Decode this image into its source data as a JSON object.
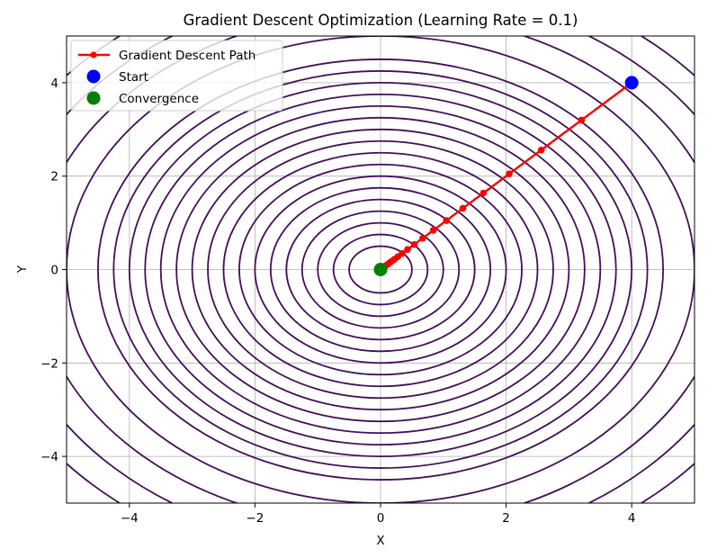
{
  "chart_data": {
    "type": "line",
    "title": "Gradient Descent Optimization (Learning Rate = 0.1)",
    "xlabel": "X",
    "ylabel": "Y",
    "xlim": [
      -5,
      5
    ],
    "ylim": [
      -5,
      5
    ],
    "x_ticks": [
      -4,
      -2,
      0,
      2,
      4
    ],
    "y_ticks": [
      -4,
      -2,
      0,
      2,
      4
    ],
    "x_tick_labels": [
      "−4",
      "−2",
      "0",
      "2",
      "4"
    ],
    "y_tick_labels": [
      "−4",
      "−2",
      "0",
      "2",
      "4"
    ],
    "grid": true,
    "legend_position": "top-left",
    "contour": {
      "function": "x^2 + y^2",
      "radii": [
        0.5,
        0.75,
        1.0,
        1.25,
        1.5,
        1.75,
        2.0,
        2.25,
        2.5,
        2.75,
        3.0,
        3.25,
        3.5,
        3.75,
        4.0,
        4.25,
        4.5,
        5.0,
        5.5,
        6.0,
        6.5
      ],
      "color": "#440f57"
    },
    "series": [
      {
        "name": "Gradient Descent Path",
        "color": "#ff0000",
        "marker": "circle",
        "x": [
          4.0,
          3.2,
          2.56,
          2.048,
          1.638,
          1.311,
          1.049,
          0.839,
          0.671,
          0.537,
          0.429,
          0.344,
          0.275,
          0.22,
          0.176,
          0.141,
          0.113,
          0.09,
          0.072,
          0.058,
          0.046
        ],
        "y": [
          4.0,
          3.2,
          2.56,
          2.048,
          1.638,
          1.311,
          1.049,
          0.839,
          0.671,
          0.537,
          0.429,
          0.344,
          0.275,
          0.22,
          0.176,
          0.141,
          0.113,
          0.09,
          0.072,
          0.058,
          0.046
        ]
      },
      {
        "name": "Start",
        "color": "#0000ff",
        "marker": "circle",
        "x": [
          4.0
        ],
        "y": [
          4.0
        ]
      },
      {
        "name": "Convergence",
        "color": "#008000",
        "marker": "circle",
        "x": [
          0.0
        ],
        "y": [
          0.0
        ]
      }
    ]
  }
}
